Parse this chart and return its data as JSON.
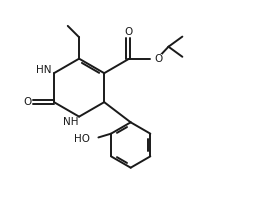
{
  "bg_color": "#ffffff",
  "line_color": "#1a1a1a",
  "text_color": "#1a1a1a",
  "line_width": 1.4,
  "font_size": 7.5,
  "figsize": [
    2.54,
    1.98
  ],
  "dpi": 100,
  "xlim": [
    0,
    10
  ],
  "ylim": [
    0,
    7.8
  ]
}
